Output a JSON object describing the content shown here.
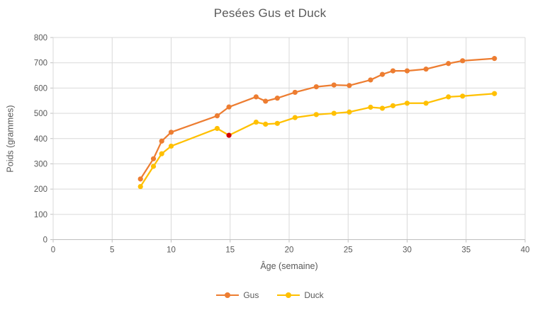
{
  "chart_data": {
    "type": "line",
    "title": "Pesées Gus et Duck",
    "xlabel": "Âge (semaine)",
    "ylabel": "Poids (grammes)",
    "xlim": [
      0,
      40
    ],
    "xtick_step": 5,
    "xtick_labels": [
      "0",
      "5",
      "10",
      "15",
      "20",
      "25",
      "30",
      "35",
      "40"
    ],
    "ylim": [
      0,
      800
    ],
    "ytick_step": 100,
    "ytick_labels": [
      "0",
      "100",
      "200",
      "300",
      "400",
      "500",
      "600",
      "700",
      "800"
    ],
    "grid": true,
    "legend_position": "bottom",
    "x": [
      7.4,
      8.5,
      9.2,
      10,
      13.9,
      14.9,
      17.2,
      18,
      19,
      20.5,
      22.3,
      23.8,
      25.1,
      26.9,
      27.9,
      28.8,
      30,
      31.6,
      33.5,
      34.7,
      37.4
    ],
    "series": [
      {
        "name": "Gus",
        "color": "#ED7D31",
        "values": [
          240,
          320,
          390,
          425,
          490,
          525,
          565,
          548,
          560,
          583,
          605,
          612,
          610,
          632,
          654,
          668,
          668,
          675,
          697,
          708,
          717
        ]
      },
      {
        "name": "Duck",
        "color": "#FFC000",
        "values": [
          210,
          290,
          340,
          370,
          440,
          413,
          465,
          457,
          460,
          483,
          495,
          500,
          505,
          524,
          520,
          530,
          540,
          540,
          565,
          568,
          578
        ],
        "point_colors": {
          "5": "#D40000"
        }
      }
    ],
    "annotations": [
      {
        "note": "highlighted-point",
        "series": "Duck",
        "x": 14.9,
        "y": 413,
        "color": "#D40000"
      }
    ]
  },
  "colors": {
    "background": "#FFFFFF",
    "gridline": "#D9D9D9",
    "axis_line": "#BFBFBF",
    "text": "#595959"
  }
}
